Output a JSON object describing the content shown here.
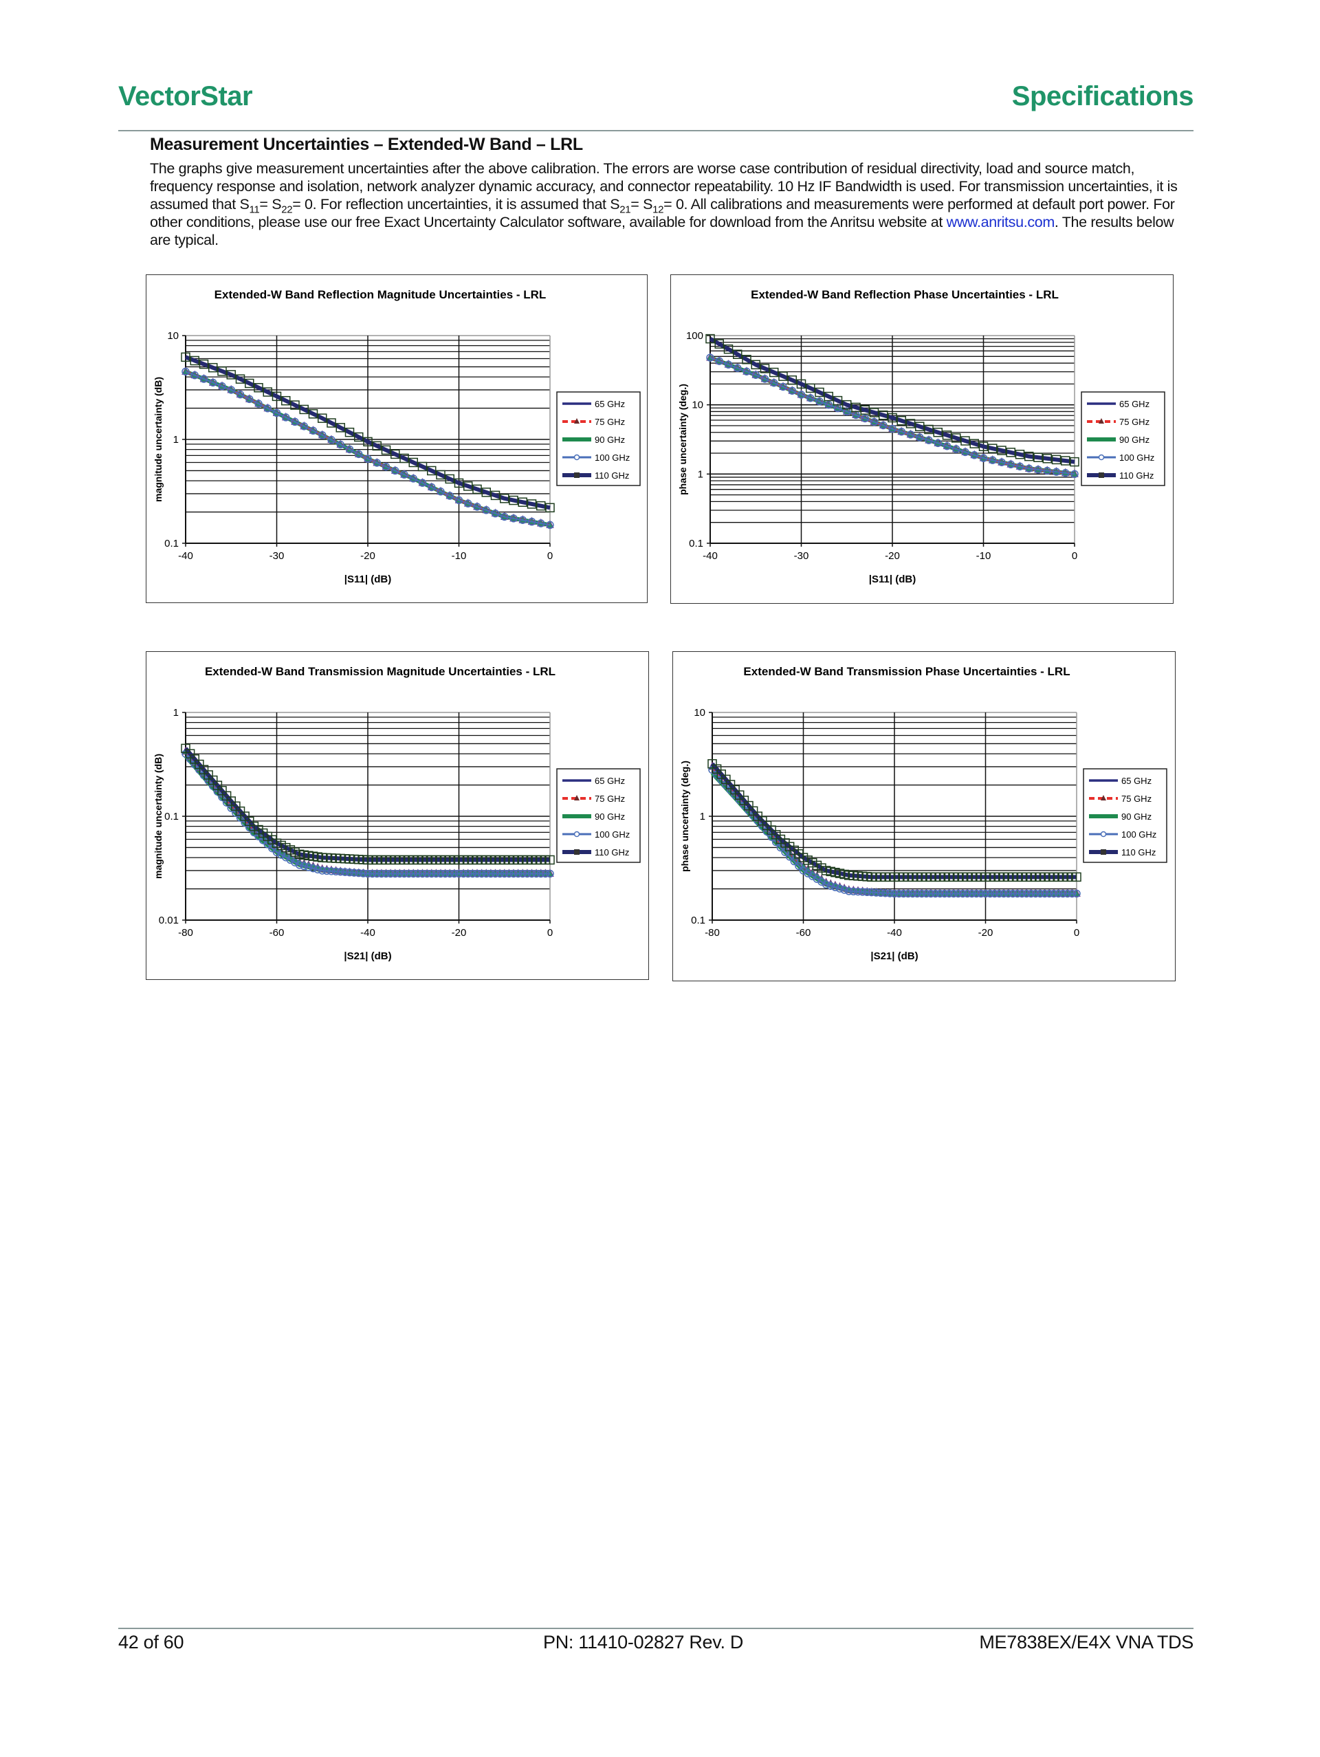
{
  "header": {
    "brand": "VectorStar",
    "section": "Specifications"
  },
  "heading": "Measurement Uncertainties – Extended-W Band – LRL",
  "intro": {
    "segments": [
      {
        "t": "The graphs give measurement uncertainties after the above calibration. The errors are worse case contribution of residual directivity, load and source match, frequency response and isolation, network analyzer dynamic accuracy, and connector repeatability. 10 Hz IF Bandwidth is used. For transmission uncertainties, it is assumed that S"
      },
      {
        "t": "11",
        "sub": true
      },
      {
        "t": "= S"
      },
      {
        "t": "22",
        "sub": true
      },
      {
        "t": "= 0. For reflection uncertainties, it is assumed that S"
      },
      {
        "t": "21",
        "sub": true
      },
      {
        "t": "= S"
      },
      {
        "t": "12",
        "sub": true
      },
      {
        "t": "= 0. All calibrations and measurements were performed at default port power. For other conditions, please use our free Exact Uncertainty Calculator software, available for download from the Anritsu website at "
      },
      {
        "t": "www.anritsu.com",
        "link": true
      },
      {
        "t": ". The results below are typical."
      }
    ]
  },
  "footer": {
    "page": "42 of 60",
    "pn": "PN: 11410-02827  Rev. D",
    "doc": "ME7838EX/E4X VNA TDS"
  },
  "colors": {
    "brand": "#1f9468",
    "s65": "#2b2f80",
    "s75": "#e8302c",
    "s90": "#1e8a4e",
    "s100": "#4a6fb8",
    "s110": "#252a6e"
  },
  "chart_data": [
    {
      "type": "line",
      "title": "Extended-W Band Reflection Magnitude Uncertainties - LRL",
      "xlabel": "|S11| (dB)",
      "ylabel": "magnitude uncertainty (dB)",
      "xlim": [
        -40,
        0
      ],
      "ylim": [
        0.1,
        10
      ],
      "yscale": "log",
      "xticks": [
        "-40",
        "-30",
        "-20",
        "-10",
        "0"
      ],
      "yticks": [
        "0.1",
        "1",
        "10"
      ],
      "grid": true,
      "legend": "right",
      "x": [
        -40,
        -35,
        -30,
        -25,
        -20,
        -15,
        -10,
        -5,
        0
      ],
      "series": [
        {
          "name": "65 GHz",
          "values": [
            6.2,
            4.2,
            2.6,
            1.6,
            0.95,
            0.6,
            0.38,
            0.27,
            0.22
          ]
        },
        {
          "name": "75 GHz",
          "values": [
            4.5,
            3.0,
            1.8,
            1.1,
            0.65,
            0.42,
            0.26,
            0.18,
            0.15
          ]
        },
        {
          "name": "90 GHz",
          "values": [
            4.5,
            3.0,
            1.8,
            1.1,
            0.65,
            0.42,
            0.26,
            0.18,
            0.15
          ]
        },
        {
          "name": "100 GHz",
          "values": [
            4.5,
            3.0,
            1.8,
            1.1,
            0.65,
            0.42,
            0.26,
            0.18,
            0.15
          ]
        },
        {
          "name": "110 GHz",
          "values": [
            6.2,
            4.2,
            2.6,
            1.6,
            0.95,
            0.6,
            0.38,
            0.27,
            0.22
          ]
        }
      ]
    },
    {
      "type": "line",
      "title": "Extended-W Band Reflection Phase Uncertainties - LRL",
      "xlabel": "|S11| (dB)",
      "ylabel": "phase uncertainty (deg.)",
      "xlim": [
        -40,
        0
      ],
      "ylim": [
        0.1,
        100
      ],
      "yscale": "log",
      "xticks": [
        "-40",
        "-30",
        "-20",
        "-10",
        "0"
      ],
      "yticks": [
        "0.1",
        "1",
        "10",
        "100"
      ],
      "grid": true,
      "legend": "right",
      "x": [
        -40,
        -35,
        -30,
        -25,
        -20,
        -15,
        -10,
        -5,
        0
      ],
      "series": [
        {
          "name": "65 GHz",
          "values": [
            90,
            38,
            20,
            10,
            6.5,
            4.0,
            2.5,
            1.8,
            1.5
          ]
        },
        {
          "name": "75 GHz",
          "values": [
            48,
            27,
            14,
            8,
            4.5,
            2.8,
            1.7,
            1.2,
            1.0
          ]
        },
        {
          "name": "90 GHz",
          "values": [
            48,
            27,
            14,
            8,
            4.5,
            2.8,
            1.7,
            1.2,
            1.0
          ]
        },
        {
          "name": "100 GHz",
          "values": [
            48,
            27,
            14,
            8,
            4.5,
            2.8,
            1.7,
            1.2,
            1.0
          ]
        },
        {
          "name": "110 GHz",
          "values": [
            90,
            38,
            20,
            10,
            6.5,
            4.0,
            2.5,
            1.8,
            1.5
          ]
        }
      ]
    },
    {
      "type": "line",
      "title": "Extended-W Band Transmission Magnitude Uncertainties - LRL",
      "xlabel": "|S21| (dB)",
      "ylabel": "magnitude uncertainty (dB)",
      "xlim": [
        -80,
        0
      ],
      "ylim": [
        0.01,
        1
      ],
      "yscale": "log",
      "xticks": [
        "-80",
        "-60",
        "-40",
        "-20",
        "0"
      ],
      "yticks": [
        "0.01",
        "0.1",
        "1"
      ],
      "grid": true,
      "legend": "right",
      "x": [
        -80,
        -75,
        -70,
        -65,
        -60,
        -55,
        -50,
        -45,
        -40,
        -35,
        -30,
        -25,
        -20,
        -15,
        -10,
        -5,
        0
      ],
      "series": [
        {
          "name": "65 GHz",
          "values": [
            0.45,
            0.25,
            0.14,
            0.08,
            0.055,
            0.043,
            0.04,
            0.039,
            0.038,
            0.038,
            0.038,
            0.038,
            0.038,
            0.038,
            0.038,
            0.038,
            0.038
          ]
        },
        {
          "name": "75 GHz",
          "values": [
            0.42,
            0.23,
            0.13,
            0.075,
            0.048,
            0.036,
            0.031,
            0.029,
            0.028,
            0.028,
            0.028,
            0.028,
            0.028,
            0.028,
            0.028,
            0.028,
            0.028
          ]
        },
        {
          "name": "90 GHz",
          "values": [
            0.38,
            0.21,
            0.12,
            0.068,
            0.045,
            0.034,
            0.03,
            0.029,
            0.028,
            0.028,
            0.028,
            0.028,
            0.028,
            0.028,
            0.028,
            0.028,
            0.028
          ]
        },
        {
          "name": "100 GHz",
          "values": [
            0.4,
            0.22,
            0.12,
            0.07,
            0.045,
            0.034,
            0.03,
            0.029,
            0.028,
            0.028,
            0.028,
            0.028,
            0.028,
            0.028,
            0.028,
            0.028,
            0.028
          ]
        },
        {
          "name": "110 GHz",
          "values": [
            0.45,
            0.25,
            0.14,
            0.08,
            0.055,
            0.043,
            0.04,
            0.039,
            0.038,
            0.038,
            0.038,
            0.038,
            0.038,
            0.038,
            0.038,
            0.038,
            0.038
          ]
        }
      ]
    },
    {
      "type": "line",
      "title": "Extended-W Band Transmission Phase Uncertainties - LRL",
      "xlabel": "|S21| (dB)",
      "ylabel": "phase uncertainty (deg.)",
      "xlim": [
        -80,
        0
      ],
      "ylim": [
        0.1,
        10
      ],
      "yscale": "log",
      "xticks": [
        "-80",
        "-60",
        "-40",
        "-20",
        "0"
      ],
      "yticks": [
        "0.1",
        "1",
        "10"
      ],
      "grid": true,
      "legend": "right",
      "x": [
        -80,
        -75,
        -70,
        -65,
        -60,
        -55,
        -50,
        -45,
        -40,
        -35,
        -30,
        -25,
        -20,
        -15,
        -10,
        -5,
        0
      ],
      "series": [
        {
          "name": "65 GHz",
          "values": [
            3.2,
            1.8,
            1.0,
            0.6,
            0.4,
            0.3,
            0.27,
            0.26,
            0.26,
            0.26,
            0.26,
            0.26,
            0.26,
            0.26,
            0.26,
            0.26,
            0.26
          ]
        },
        {
          "name": "75 GHz",
          "values": [
            3.0,
            1.7,
            0.95,
            0.55,
            0.33,
            0.23,
            0.195,
            0.185,
            0.18,
            0.18,
            0.18,
            0.18,
            0.18,
            0.18,
            0.18,
            0.18,
            0.18
          ]
        },
        {
          "name": "90 GHz",
          "values": [
            2.6,
            1.5,
            0.85,
            0.5,
            0.3,
            0.22,
            0.19,
            0.185,
            0.18,
            0.18,
            0.18,
            0.18,
            0.18,
            0.18,
            0.18,
            0.18,
            0.18
          ]
        },
        {
          "name": "100 GHz",
          "values": [
            2.8,
            1.6,
            0.9,
            0.5,
            0.3,
            0.22,
            0.19,
            0.185,
            0.18,
            0.18,
            0.18,
            0.18,
            0.18,
            0.18,
            0.18,
            0.18,
            0.18
          ]
        },
        {
          "name": "110 GHz",
          "values": [
            3.2,
            1.8,
            1.0,
            0.6,
            0.4,
            0.3,
            0.27,
            0.26,
            0.26,
            0.26,
            0.26,
            0.26,
            0.26,
            0.26,
            0.26,
            0.26,
            0.26
          ]
        }
      ]
    }
  ]
}
